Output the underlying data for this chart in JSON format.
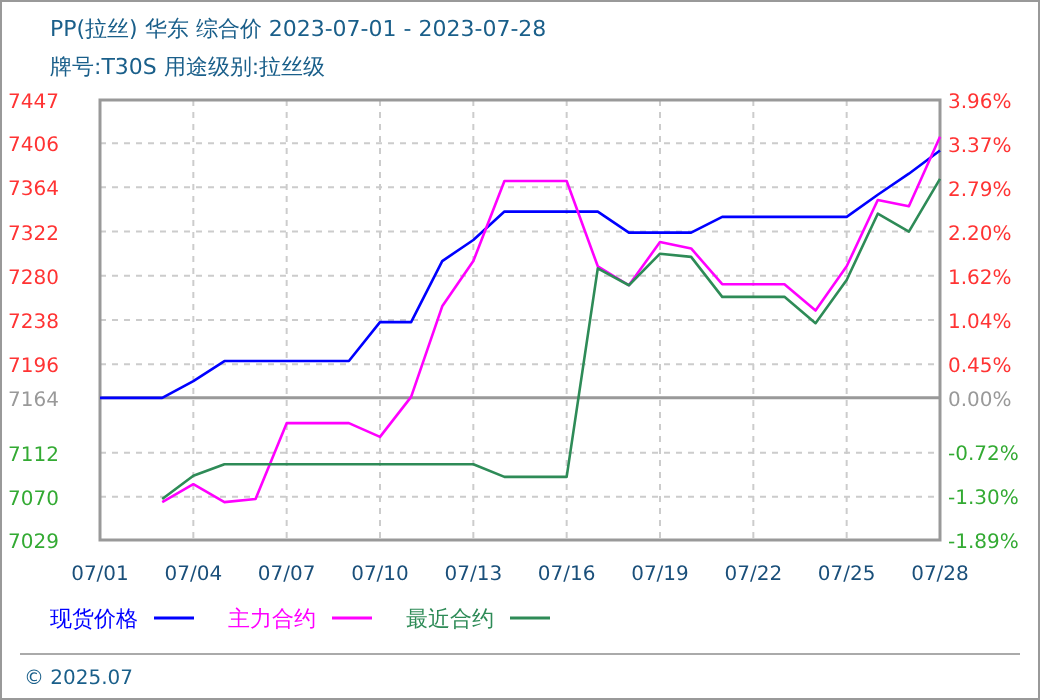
{
  "chart_data": {
    "type": "line",
    "title": "PP(拉丝) 华东 综合价 2023-07-01 - 2023-07-28",
    "subtitle": "牌号:T30S 用途级别:拉丝级",
    "xlim": [
      "2023-07-01",
      "2023-07-28"
    ],
    "xticks": [
      {
        "value": "2023-07-01",
        "label": "07/01"
      },
      {
        "value": "2023-07-04",
        "label": "07/04"
      },
      {
        "value": "2023-07-07",
        "label": "07/07"
      },
      {
        "value": "2023-07-10",
        "label": "07/10"
      },
      {
        "value": "2023-07-13",
        "label": "07/13"
      },
      {
        "value": "2023-07-16",
        "label": "07/16"
      },
      {
        "value": "2023-07-19",
        "label": "07/19"
      },
      {
        "value": "2023-07-22",
        "label": "07/22"
      },
      {
        "value": "2023-07-25",
        "label": "07/25"
      },
      {
        "value": "2023-07-28",
        "label": "07/28"
      }
    ],
    "ylim": [
      7029,
      7447
    ],
    "yticks": [
      7029,
      7070,
      7112,
      7164,
      7196,
      7238,
      7280,
      7322,
      7364,
      7406,
      7447
    ],
    "y2lim": [
      -1.89,
      3.96
    ],
    "y2ticks": [
      {
        "value": -1.89,
        "label": "-1.89%"
      },
      {
        "value": -1.3,
        "label": "-1.30%"
      },
      {
        "value": -0.72,
        "label": "-0.72%"
      },
      {
        "value": 0,
        "label": "0.00%"
      },
      {
        "value": 0.45,
        "label": "0.45%"
      },
      {
        "value": 1.04,
        "label": "1.04%"
      },
      {
        "value": 1.62,
        "label": "1.62%"
      },
      {
        "value": 2.2,
        "label": "2.20%"
      },
      {
        "value": 2.79,
        "label": "2.79%"
      },
      {
        "value": 3.37,
        "label": "3.37%"
      },
      {
        "value": 3.96,
        "label": "3.96%"
      }
    ],
    "ref_lines": [
      {
        "axis": "y2",
        "value": 0,
        "color": "#999999"
      }
    ],
    "grid": true,
    "legend": "bottom",
    "line_style": "solid",
    "marker": "none",
    "series": [
      {
        "name": "现货价格",
        "color": "#0000ff",
        "x": [
          "2023-07-01",
          "2023-07-03",
          "2023-07-04",
          "2023-07-05",
          "2023-07-09",
          "2023-07-10",
          "2023-07-11",
          "2023-07-12",
          "2023-07-13",
          "2023-07-14",
          "2023-07-17",
          "2023-07-18",
          "2023-07-20",
          "2023-07-21",
          "2023-07-25",
          "2023-07-26",
          "2023-07-27",
          "2023-07-28"
        ],
        "values": [
          7164,
          7164,
          7180,
          7199,
          7199,
          7236,
          7236,
          7294,
          7314,
          7341,
          7341,
          7321,
          7321,
          7336,
          7336,
          7357,
          7377,
          7399
        ]
      },
      {
        "name": "主力合约",
        "color": "#ff00ff",
        "x": [
          "2023-07-03",
          "2023-07-04",
          "2023-07-05",
          "2023-07-06",
          "2023-07-07",
          "2023-07-09",
          "2023-07-10",
          "2023-07-11",
          "2023-07-12",
          "2023-07-13",
          "2023-07-14",
          "2023-07-16",
          "2023-07-17",
          "2023-07-18",
          "2023-07-19",
          "2023-07-20",
          "2023-07-21",
          "2023-07-23",
          "2023-07-24",
          "2023-07-25",
          "2023-07-26",
          "2023-07-27",
          "2023-07-28"
        ],
        "values": [
          7065,
          7082,
          7065,
          7068,
          7140,
          7140,
          7127,
          7165,
          7251,
          7294,
          7370,
          7370,
          7289,
          7271,
          7312,
          7306,
          7272,
          7272,
          7247,
          7289,
          7352,
          7346,
          7412
        ]
      },
      {
        "name": "最近合约",
        "color": "#2e8b57",
        "x": [
          "2023-07-03",
          "2023-07-04",
          "2023-07-05",
          "2023-07-13",
          "2023-07-14",
          "2023-07-16",
          "2023-07-17",
          "2023-07-18",
          "2023-07-19",
          "2023-07-20",
          "2023-07-21",
          "2023-07-23",
          "2023-07-24",
          "2023-07-25",
          "2023-07-26",
          "2023-07-27",
          "2023-07-28"
        ],
        "values": [
          7068,
          7090,
          7101,
          7101,
          7089,
          7089,
          7287,
          7271,
          7301,
          7298,
          7260,
          7260,
          7235,
          7276,
          7339,
          7322,
          7372
        ]
      }
    ],
    "annotations": [
      "© 2025.07"
    ]
  }
}
